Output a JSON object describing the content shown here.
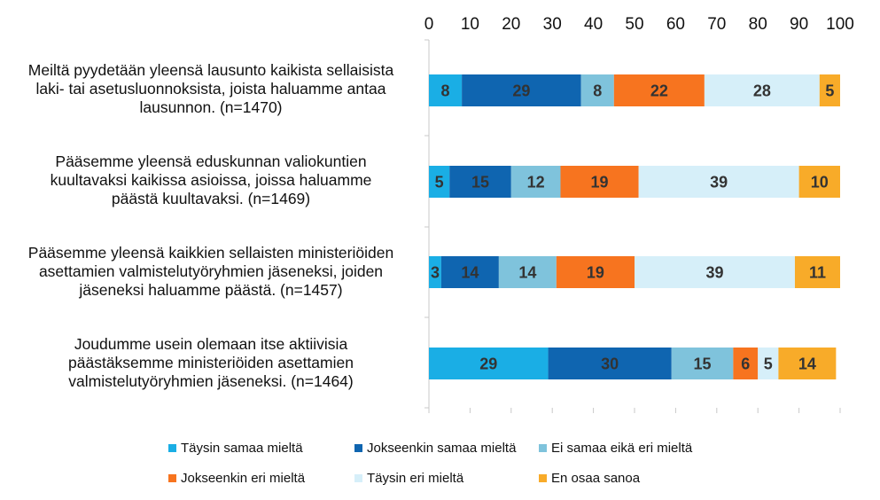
{
  "chart_data": {
    "type": "bar",
    "orientation": "horizontal",
    "stacked": true,
    "categories": [
      "Meiltä pyydetään yleensä lausunto kaikista sellaisista laki- tai asetusluonnoksista, joista haluamme antaa lausunnon. (n=1470)",
      "Pääsemme yleensä eduskunnan valiokuntien kuultavaksi kaikissa asioissa, joissa haluamme päästä kuultavaksi. (n=1469)",
      "Pääsemme yleensä kaikkien sellaisten ministeriöiden asettamien valmistelutyöryhmien jäseneksi, joiden jäseneksi haluamme päästä. (n=1457)",
      "Joudumme usein olemaan itse aktiivisia päästäksemme ministeriöiden asettamien valmistelutyöryhmien jäseneksi. (n=1464)"
    ],
    "category_lines": [
      [
        "Meiltä pyydetään yleensä lausunto kaikista sellaisista",
        "laki- tai asetusluonnoksista, joista haluamme antaa",
        "lausunnon. (n=1470)"
      ],
      [
        "Pääsemme yleensä eduskunnan valiokuntien",
        "kuultavaksi kaikissa asioissa, joissa haluamme",
        "päästä kuultavaksi. (n=1469)"
      ],
      [
        "Pääsemme yleensä kaikkien sellaisten ministeriöiden",
        "asettamien valmistelutyöryhmien jäseneksi, joiden",
        "jäseneksi haluamme päästä. (n=1457)"
      ],
      [
        "Joudumme usein olemaan itse aktiivisia",
        "päästäksemme ministeriöiden asettamien",
        "valmistelutyöryhmien jäseneksi. (n=1464)"
      ]
    ],
    "series": [
      {
        "name": "Täysin samaa mieltä",
        "color": "#1aaee5",
        "values": [
          8,
          5,
          3,
          29
        ]
      },
      {
        "name": "Jokseenkin samaa mieltä",
        "color": "#0f65b0",
        "values": [
          29,
          15,
          14,
          30
        ]
      },
      {
        "name": "Ei samaa eikä eri mieltä",
        "color": "#7fc3dc",
        "values": [
          8,
          12,
          14,
          15
        ]
      },
      {
        "name": "Jokseenkin eri mieltä",
        "color": "#f7741f",
        "values": [
          22,
          19,
          19,
          6
        ]
      },
      {
        "name": "Täysin eri mieltä",
        "color": "#d6eff9",
        "values": [
          28,
          39,
          39,
          5
        ]
      },
      {
        "name": "En osaa sanoa",
        "color": "#f8ab29",
        "values": [
          5,
          10,
          11,
          14
        ]
      }
    ],
    "xlim": [
      0,
      100
    ],
    "xticks": [
      0,
      10,
      20,
      30,
      40,
      50,
      60,
      70,
      80,
      90,
      100
    ],
    "x_axis_position": "top",
    "grid": false,
    "legend_position": "bottom"
  }
}
